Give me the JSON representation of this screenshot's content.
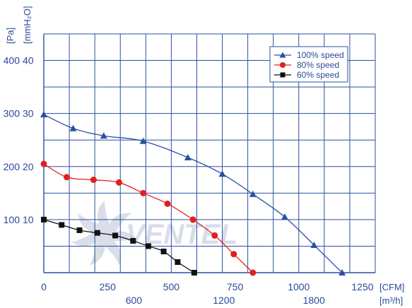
{
  "chart_data": {
    "type": "line",
    "title": "",
    "xlabel": "[CFM]",
    "xlabel_secondary": "[m³/h]",
    "ylabel_left": "[Pa]",
    "ylabel_right": "[mmH₂O]",
    "xlim": [
      0,
      1300
    ],
    "ylim": [
      0,
      450
    ],
    "x_ticks": [
      0,
      250,
      500,
      750,
      1000,
      1250
    ],
    "x_ticks_secondary": [
      {
        "label": "600",
        "value": 353.1
      },
      {
        "label": "1200",
        "value": 706.3
      },
      {
        "label": "1800",
        "value": 1059.4
      }
    ],
    "y_ticks_pa": [
      {
        "label": "100",
        "value": 100
      },
      {
        "label": "200",
        "value": 200
      },
      {
        "label": "300",
        "value": 300
      },
      {
        "label": "400",
        "value": 400
      }
    ],
    "y_ticks_mmh2o": [
      {
        "label": "10",
        "value": 100
      },
      {
        "label": "20",
        "value": 200
      },
      {
        "label": "30",
        "value": 300
      },
      {
        "label": "40",
        "value": 400
      }
    ],
    "grid": true,
    "legend_position": "top-right",
    "series": [
      {
        "name": "100% speed",
        "color": "#2c4fa3",
        "marker": "triangle",
        "x": [
          0,
          115,
          235,
          390,
          565,
          700,
          820,
          945,
          1060,
          1170
        ],
        "y": [
          298,
          272,
          258,
          248,
          217,
          186,
          148,
          105,
          52,
          0
        ]
      },
      {
        "name": "80% speed",
        "color": "#e02020",
        "marker": "circle",
        "x": [
          0,
          90,
          195,
          295,
          390,
          485,
          585,
          670,
          745,
          820
        ],
        "y": [
          205,
          180,
          175,
          170,
          150,
          130,
          100,
          70,
          35,
          0
        ]
      },
      {
        "name": "60% speed",
        "color": "#111111",
        "marker": "square",
        "x": [
          0,
          70,
          140,
          210,
          280,
          350,
          410,
          470,
          525,
          590
        ],
        "y": [
          100,
          90,
          80,
          75,
          70,
          60,
          50,
          40,
          20,
          0
        ]
      }
    ]
  },
  "watermark_text": "VENTEL"
}
